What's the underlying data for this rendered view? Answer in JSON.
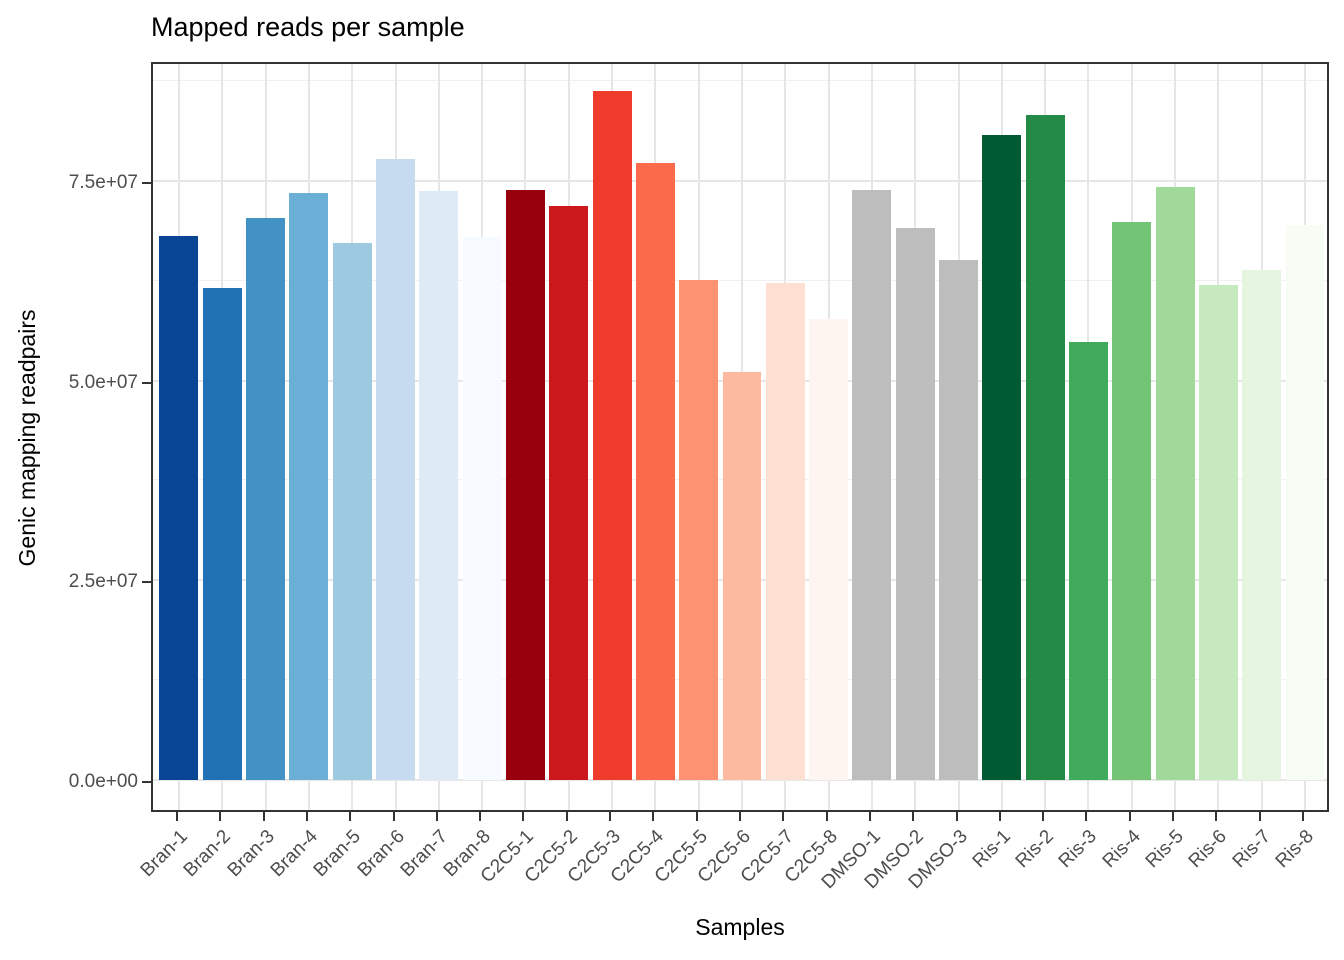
{
  "chart_data": {
    "type": "bar",
    "title": "Mapped reads per sample",
    "xlabel": "Samples",
    "ylabel": "Genic mapping readpairs",
    "legend": "none",
    "grid": true,
    "categories": [
      "Bran-1",
      "Bran-2",
      "Bran-3",
      "Bran-4",
      "Bran-5",
      "Bran-6",
      "Bran-7",
      "Bran-8",
      "C2C5-1",
      "C2C5-2",
      "C2C5-3",
      "C2C5-4",
      "C2C5-5",
      "C2C5-6",
      "C2C5-7",
      "C2C5-8",
      "DMSO-1",
      "DMSO-2",
      "DMSO-3",
      "Ris-1",
      "Ris-2",
      "Ris-3",
      "Ris-4",
      "Ris-5",
      "Ris-6",
      "Ris-7",
      "Ris-8"
    ],
    "values": [
      68100000,
      61600000,
      70300000,
      73500000,
      67200000,
      77700000,
      73800000,
      68000000,
      73900000,
      71800000,
      86200000,
      77300000,
      62600000,
      51100000,
      62200000,
      57700000,
      73900000,
      69100000,
      65100000,
      80700000,
      83200000,
      54800000,
      69900000,
      74300000,
      62000000,
      63800000,
      69500000
    ],
    "bar_colors": [
      "#084594",
      "#2171b5",
      "#4292c6",
      "#6baed6",
      "#9ecae1",
      "#c6dbef",
      "#deebf7",
      "#f7fbff",
      "#99000d",
      "#cb181d",
      "#ef3b2c",
      "#fb6a4a",
      "#fc9272",
      "#fcbba1",
      "#fee0d2",
      "#fff5f0",
      "#bdbdbd",
      "#bdbdbd",
      "#bdbdbd",
      "#005a32",
      "#238b45",
      "#41ab5d",
      "#74c476",
      "#a1d99b",
      "#c7e9c0",
      "#e5f5e0",
      "#f7fcf5"
    ],
    "y_ticks": {
      "labels": [
        "0.0e+00",
        "2.5e+07",
        "5.0e+07",
        "7.5e+07"
      ],
      "values": [
        0,
        25000000,
        50000000,
        75000000
      ]
    },
    "y_minor_gridlines": [
      12500000,
      37500000,
      62500000,
      87500000
    ],
    "ylim": [
      0,
      90000000
    ],
    "styling": {
      "panel_border_color": "#333333",
      "major_grid_color": "#e6e6e6",
      "minor_grid_color": "#f0f0f0",
      "tick_mark_color": "#333333",
      "axis_text_color": "#4d4d4d",
      "title_color": "#000000",
      "background_color": "#ffffff"
    }
  }
}
